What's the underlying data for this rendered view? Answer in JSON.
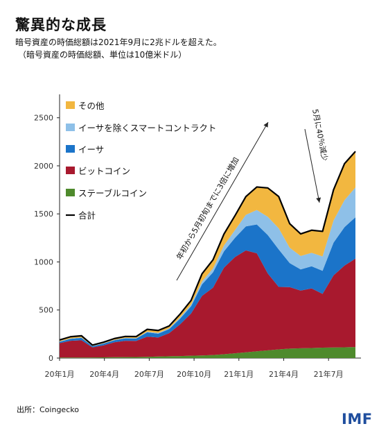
{
  "title": "驚異的な成長",
  "subtitle": "暗号資産の時価総額は2021年9月に2兆ドルを超えた。",
  "subtitle2": "（暗号資産の時価総額、単位は10億米ドル）",
  "source": "出所：Coingecko",
  "logo": "IMF",
  "colors": {
    "other": "#f2b740",
    "other_defi": "#8ec0e8",
    "ethereum": "#1b74c9",
    "bitcoin": "#a8192e",
    "stablecoin": "#4e8a2c",
    "total": "#000000"
  },
  "chart_data": {
    "type": "area",
    "stacked": true,
    "ylim": [
      0,
      2700
    ],
    "yticks": [
      0,
      500,
      1000,
      1500,
      2000,
      2500
    ],
    "x_ticks": [
      "20年1月",
      "20年4月",
      "20年7月",
      "20年10月",
      "21年1月",
      "21年4月",
      "21年7月"
    ],
    "x": [
      "2020-01",
      "2020-02",
      "2020-03a",
      "2020-03b",
      "2020-04",
      "2020-05",
      "2020-06",
      "2020-07",
      "2020-08",
      "2020-09",
      "2020-10",
      "2020-11",
      "2020-12",
      "2021-01a",
      "2021-01b",
      "2021-02",
      "2021-03",
      "2021-04a",
      "2021-04b",
      "2021-05a",
      "2021-05b",
      "2021-06a",
      "2021-06b",
      "2021-07a",
      "2021-07b",
      "2021-08a",
      "2021-08b",
      "2021-09"
    ],
    "series": [
      {
        "name": "ステーブルコイン",
        "key": "stable",
        "values": [
          5,
          5,
          5,
          6,
          7,
          9,
          10,
          11,
          13,
          16,
          19,
          21,
          24,
          27,
          32,
          40,
          50,
          60,
          70,
          80,
          90,
          98,
          102,
          105,
          108,
          110,
          112,
          115
        ]
      },
      {
        "name": "ビットコイン",
        "key": "btc",
        "values": [
          150,
          175,
          180,
          105,
          125,
          155,
          170,
          168,
          210,
          198,
          240,
          330,
          440,
          620,
          700,
          900,
          1000,
          1060,
          1020,
          800,
          650,
          640,
          600,
          620,
          560,
          750,
          850,
          920
        ]
      },
      {
        "name": "イーサ",
        "key": "eth",
        "values": [
          15,
          20,
          25,
          12,
          18,
          22,
          25,
          25,
          45,
          40,
          42,
          60,
          75,
          120,
          160,
          170,
          200,
          250,
          300,
          400,
          390,
          250,
          220,
          230,
          240,
          340,
          400,
          430
        ]
      },
      {
        "name": "イーサを除くスマートコントラクト",
        "key": "defi",
        "values": [
          3,
          4,
          4,
          2,
          3,
          3,
          4,
          4,
          6,
          8,
          8,
          12,
          16,
          30,
          40,
          60,
          80,
          120,
          150,
          190,
          220,
          160,
          140,
          140,
          150,
          230,
          280,
          310
        ]
      },
      {
        "name": "その他",
        "key": "other",
        "values": [
          15,
          18,
          18,
          10,
          12,
          14,
          16,
          16,
          25,
          25,
          25,
          35,
          45,
          80,
          90,
          120,
          150,
          190,
          240,
          300,
          330,
          250,
          230,
          235,
          260,
          320,
          380,
          375
        ]
      }
    ],
    "total_name": "合計",
    "legend": [
      "その他",
      "イーサを除くスマートコントラクト",
      "イーサ",
      "ビットコイン",
      "ステーブルコイン",
      "合計"
    ],
    "annotations": [
      {
        "text": "年初から5月初旬までに3倍に増加"
      },
      {
        "text": "5月に40％減少"
      }
    ]
  }
}
